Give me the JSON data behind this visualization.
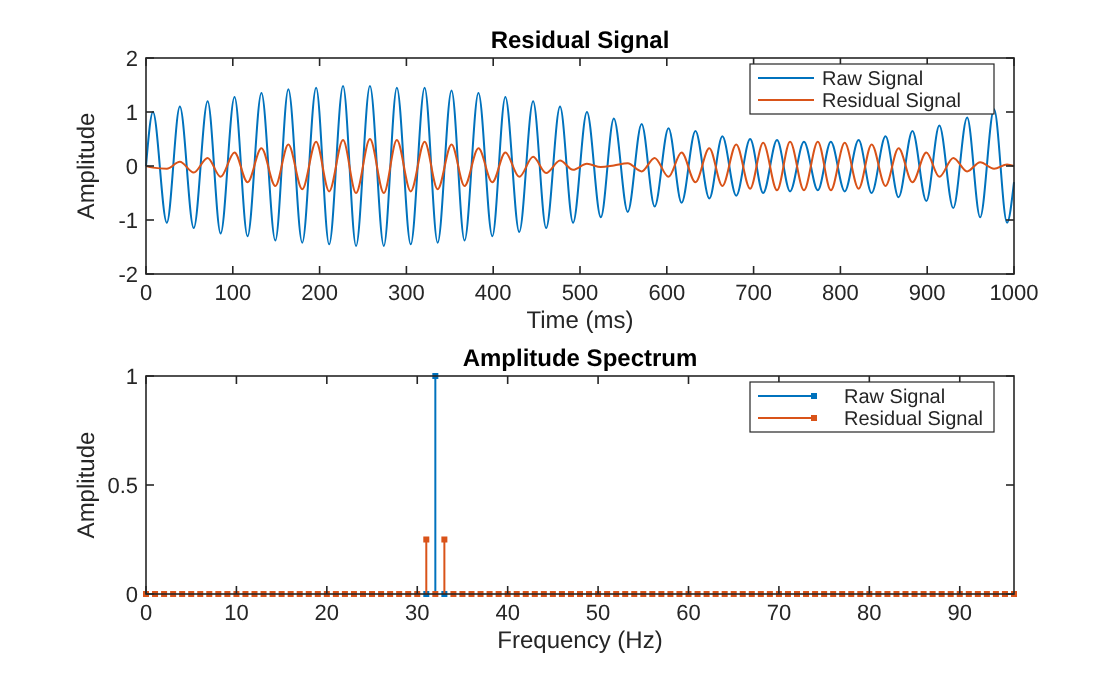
{
  "chart_data": [
    {
      "type": "line",
      "title": "Residual Signal",
      "xlabel": "Time (ms)",
      "ylabel": "Amplitude",
      "xlim": [
        0,
        1000
      ],
      "ylim": [
        -2,
        2
      ],
      "xticks": [
        0,
        100,
        200,
        300,
        400,
        500,
        600,
        700,
        800,
        900,
        1000
      ],
      "yticks": [
        -2,
        -1,
        0,
        1,
        2
      ],
      "legend": "top right",
      "grid": false,
      "series": [
        {
          "name": "Raw Signal",
          "color": "#0072bd",
          "x": [
            0,
            8,
            24,
            39,
            55,
            71,
            86,
            102,
            117,
            133,
            149,
            164,
            180,
            196,
            211,
            227,
            242,
            258,
            274,
            289,
            305,
            321,
            336,
            352,
            367,
            383,
            399,
            414,
            430,
            446,
            461,
            477,
            492,
            508,
            524,
            539,
            555,
            571,
            586,
            602,
            617,
            633,
            649,
            664,
            680,
            696,
            711,
            727,
            742,
            758,
            774,
            789,
            805,
            821,
            836,
            852,
            867,
            883,
            899,
            914,
            930,
            946,
            961,
            977,
            992,
            1000
          ],
          "values": [
            0,
            1.0,
            -1.05,
            1.1,
            -1.15,
            1.2,
            -1.25,
            1.28,
            -1.3,
            1.35,
            -1.38,
            1.42,
            -1.42,
            1.45,
            -1.45,
            1.48,
            -1.48,
            1.48,
            -1.48,
            1.45,
            -1.45,
            1.45,
            -1.42,
            1.4,
            -1.38,
            1.35,
            -1.3,
            1.28,
            -1.22,
            1.2,
            -1.15,
            1.1,
            -1.05,
            1.0,
            -0.95,
            0.88,
            -0.85,
            0.78,
            -0.75,
            0.7,
            -0.68,
            0.65,
            -0.6,
            0.55,
            -0.55,
            0.5,
            -0.5,
            0.48,
            -0.47,
            0.45,
            -0.45,
            0.45,
            -0.47,
            0.48,
            -0.5,
            0.55,
            -0.58,
            0.65,
            -0.65,
            0.75,
            -0.78,
            0.9,
            -0.95,
            1.05,
            -1.05,
            -0.3
          ]
        },
        {
          "name": "Residual Signal",
          "color": "#d95319",
          "x": [
            0,
            8,
            24,
            39,
            55,
            71,
            86,
            102,
            117,
            133,
            149,
            164,
            180,
            196,
            211,
            227,
            242,
            258,
            274,
            289,
            305,
            321,
            336,
            352,
            367,
            383,
            399,
            414,
            430,
            446,
            461,
            477,
            492,
            508,
            524,
            539,
            555,
            571,
            586,
            602,
            617,
            633,
            649,
            664,
            680,
            696,
            711,
            727,
            742,
            758,
            774,
            789,
            805,
            821,
            836,
            852,
            867,
            883,
            899,
            914,
            930,
            946,
            961,
            977,
            992,
            1000
          ],
          "values": [
            0,
            -0.03,
            -0.05,
            0.08,
            -0.12,
            0.15,
            -0.2,
            0.25,
            -0.3,
            0.33,
            -0.37,
            0.4,
            -0.43,
            0.45,
            -0.47,
            0.48,
            -0.5,
            0.5,
            -0.5,
            0.48,
            -0.47,
            0.45,
            -0.43,
            0.4,
            -0.37,
            0.33,
            -0.3,
            0.25,
            -0.2,
            0.17,
            -0.13,
            0.1,
            -0.07,
            0.04,
            -0.02,
            0.01,
            0.05,
            -0.1,
            0.15,
            -0.2,
            0.25,
            -0.3,
            0.33,
            -0.37,
            0.4,
            -0.42,
            0.43,
            -0.45,
            0.45,
            -0.45,
            0.45,
            -0.45,
            0.43,
            -0.42,
            0.4,
            -0.37,
            0.33,
            -0.3,
            0.25,
            -0.2,
            0.15,
            -0.1,
            0.07,
            -0.05,
            0.03,
            0
          ]
        }
      ]
    },
    {
      "type": "lollipop",
      "title": "Amplitude Spectrum",
      "xlabel": "Frequency (Hz)",
      "ylabel": "Amplitude",
      "xlim": [
        0,
        96
      ],
      "ylim": [
        0,
        1
      ],
      "xticks": [
        0,
        10,
        20,
        30,
        40,
        50,
        60,
        70,
        80,
        90
      ],
      "yticks": [
        0,
        0.5,
        1
      ],
      "legend": "top right",
      "marker": "square",
      "grid": false,
      "series": [
        {
          "name": "Raw Signal",
          "color": "#0072bd",
          "x": [
            31,
            32,
            33
          ],
          "values": [
            0,
            1,
            0
          ]
        },
        {
          "name": "Residual Signal",
          "color": "#d95319",
          "x": [
            0,
            1,
            2,
            3,
            4,
            5,
            6,
            7,
            8,
            9,
            10,
            11,
            12,
            13,
            14,
            15,
            16,
            17,
            18,
            19,
            20,
            21,
            22,
            23,
            24,
            25,
            26,
            27,
            28,
            29,
            30,
            31,
            32,
            33,
            34,
            35,
            36,
            37,
            38,
            39,
            40,
            41,
            42,
            43,
            44,
            45,
            46,
            47,
            48,
            49,
            50,
            51,
            52,
            53,
            54,
            55,
            56,
            57,
            58,
            59,
            60,
            61,
            62,
            63,
            64,
            65,
            66,
            67,
            68,
            69,
            70,
            71,
            72,
            73,
            74,
            75,
            76,
            77,
            78,
            79,
            80,
            81,
            82,
            83,
            84,
            85,
            86,
            87,
            88,
            89,
            90,
            91,
            92,
            93,
            94,
            95,
            96
          ],
          "values": [
            0,
            0,
            0,
            0,
            0,
            0,
            0,
            0,
            0,
            0,
            0,
            0,
            0,
            0,
            0,
            0,
            0,
            0,
            0,
            0,
            0,
            0,
            0,
            0,
            0,
            0,
            0,
            0,
            0,
            0,
            0,
            0.25,
            0,
            0.25,
            0,
            0,
            0,
            0,
            0,
            0,
            0,
            0,
            0,
            0,
            0,
            0,
            0,
            0,
            0,
            0,
            0,
            0,
            0,
            0,
            0,
            0,
            0,
            0,
            0,
            0,
            0,
            0,
            0,
            0,
            0,
            0,
            0,
            0,
            0,
            0,
            0,
            0,
            0,
            0,
            0,
            0,
            0,
            0,
            0,
            0,
            0,
            0,
            0,
            0,
            0,
            0,
            0,
            0,
            0,
            0,
            0,
            0,
            0,
            0,
            0,
            0,
            0
          ]
        }
      ]
    }
  ]
}
